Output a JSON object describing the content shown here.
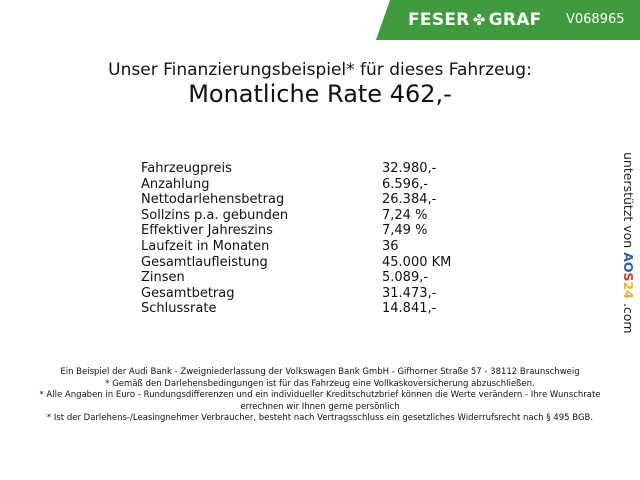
{
  "header": {
    "brand_left": "FESER",
    "brand_icon": "clover-icon",
    "brand_right": "GRAF",
    "vehicle_id": "V068965",
    "brand_color": "#3f9b3d"
  },
  "title": "Unser Finanzierungsbeispiel* für dieses Fahrzeug:",
  "rate": "Monatliche Rate 462,-",
  "rows": [
    {
      "label": "Fahrzeugpreis",
      "value": "32.980,-"
    },
    {
      "label": "Anzahlung",
      "value": "6.596,-"
    },
    {
      "label": "Nettodarlehensbetrag",
      "value": "26.384,-"
    },
    {
      "label": "Sollzins p.a. gebunden",
      "value": "7,24 %"
    },
    {
      "label": "Effektiver Jahreszins",
      "value": "7,49 %"
    },
    {
      "label": "Laufzeit in Monaten",
      "value": "36"
    },
    {
      "label": "Gesamtlaufleistung",
      "value": "45.000 KM"
    },
    {
      "label": "Zinsen",
      "value": "5.089,-"
    },
    {
      "label": "Gesamtbetrag",
      "value": "31.473,-"
    },
    {
      "label": "Schlussrate",
      "value": "14.841,-"
    }
  ],
  "side": {
    "text": "unterstützt von",
    "l1": "A",
    "l2": "O",
    "l3": "S",
    "l4": "24",
    "suffix": ".com"
  },
  "footer": [
    "Ein Beispiel der Audi Bank - Zweigniederlassung der Volkswagen Bank GmbH - Gifhorner Straße 57 - 38112 Braunschweig",
    "* Gemäß den Darlehensbedingungen ist für das Fahrzeug eine Vollkaskoversicherung abzuschließen.",
    "* Alle Angaben in Euro - Rundungsdifferenzen und ein individueller Kreditschutzbrief können die Werte verändern - Ihre Wunschrate errechnen wir Ihnen gerne persönlich",
    "* Ist der Darlehens-/Leasingnehmer Verbraucher, besteht nach Vertragsschluss ein gesetzliches Widerrufsrecht nach § 495 BGB."
  ]
}
